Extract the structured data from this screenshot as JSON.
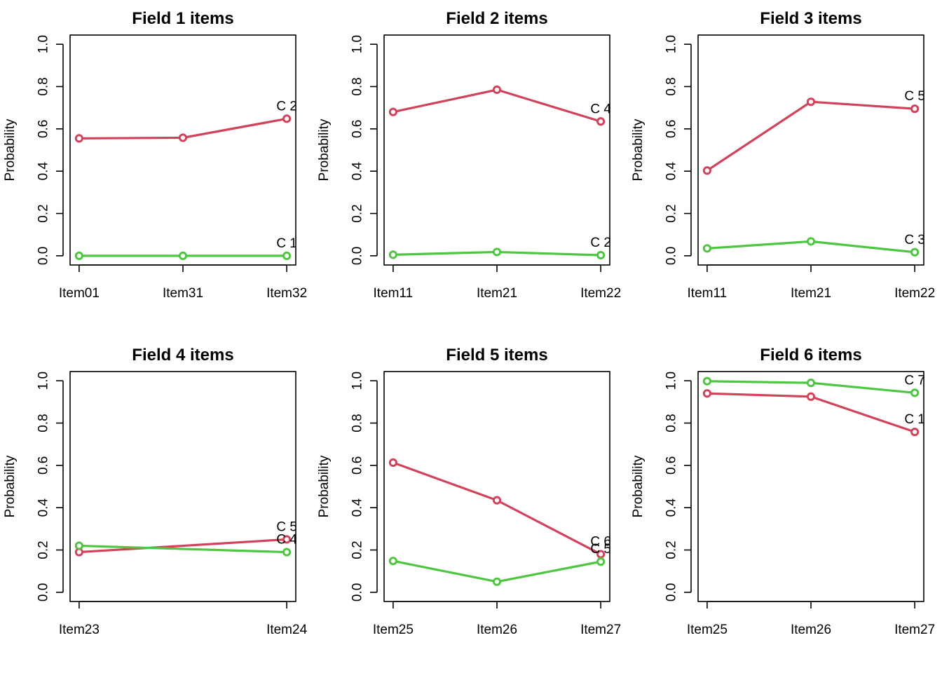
{
  "colors": {
    "series_red": "#d1435b",
    "series_green": "#4ec641"
  },
  "chart_data": [
    {
      "type": "line",
      "title": "Field 1 items",
      "ylabel": "Probability",
      "ylim": [
        0,
        1
      ],
      "yticks": [
        "0.0",
        "0.2",
        "0.4",
        "0.6",
        "0.8",
        "1.0"
      ],
      "categories": [
        "Item01",
        "Item31",
        "Item32"
      ],
      "series": [
        {
          "color": "red",
          "values": [
            0.555,
            0.558,
            0.648
          ],
          "end_label": "C 2"
        },
        {
          "color": "green",
          "values": [
            0.0,
            0.0,
            0.0
          ],
          "end_label": "C 1"
        }
      ]
    },
    {
      "type": "line",
      "title": "Field 2 items",
      "ylabel": "Probability",
      "ylim": [
        0,
        1
      ],
      "yticks": [
        "0.0",
        "0.2",
        "0.4",
        "0.6",
        "0.8",
        "1.0"
      ],
      "categories": [
        "Item11",
        "Item21",
        "Item22"
      ],
      "series": [
        {
          "color": "red",
          "values": [
            0.68,
            0.785,
            0.635
          ],
          "end_label": "C 4"
        },
        {
          "color": "green",
          "values": [
            0.005,
            0.018,
            0.003
          ],
          "end_label": "C 2"
        }
      ]
    },
    {
      "type": "line",
      "title": "Field 3 items",
      "ylabel": "Probability",
      "ylim": [
        0,
        1
      ],
      "yticks": [
        "0.0",
        "0.2",
        "0.4",
        "0.6",
        "0.8",
        "1.0"
      ],
      "categories": [
        "Item11",
        "Item21",
        "Item22"
      ],
      "series": [
        {
          "color": "red",
          "values": [
            0.403,
            0.728,
            0.695
          ],
          "end_label": "C 5"
        },
        {
          "color": "green",
          "values": [
            0.035,
            0.068,
            0.017
          ],
          "end_label": "C 3"
        }
      ]
    },
    {
      "type": "line",
      "title": "Field 4 items",
      "ylabel": "Probability",
      "ylim": [
        0,
        1
      ],
      "yticks": [
        "0.0",
        "0.2",
        "0.4",
        "0.6",
        "0.8",
        "1.0"
      ],
      "categories": [
        "Item23",
        "Item24"
      ],
      "series": [
        {
          "color": "red",
          "values": [
            0.19,
            0.25
          ],
          "end_label": "C 5"
        },
        {
          "color": "green",
          "values": [
            0.22,
            0.19
          ],
          "end_label": "C 4"
        }
      ]
    },
    {
      "type": "line",
      "title": "Field 5 items",
      "ylabel": "Probability",
      "ylim": [
        0,
        1
      ],
      "yticks": [
        "0.0",
        "0.2",
        "0.4",
        "0.6",
        "0.8",
        "1.0"
      ],
      "categories": [
        "Item25",
        "Item26",
        "Item27"
      ],
      "series": [
        {
          "color": "red",
          "values": [
            0.613,
            0.435,
            0.18
          ],
          "end_label": "C 6"
        },
        {
          "color": "green",
          "values": [
            0.148,
            0.05,
            0.145
          ],
          "end_label": "C 5"
        }
      ]
    },
    {
      "type": "line",
      "title": "Field 6 items",
      "ylabel": "Probability",
      "ylim": [
        0,
        1
      ],
      "yticks": [
        "0.0",
        "0.2",
        "0.4",
        "0.6",
        "0.8",
        "1.0"
      ],
      "categories": [
        "Item25",
        "Item26",
        "Item27"
      ],
      "series": [
        {
          "color": "red",
          "values": [
            0.94,
            0.925,
            0.758
          ],
          "end_label": "C 1"
        },
        {
          "color": "green",
          "values": [
            0.998,
            0.99,
            0.943
          ],
          "end_label": "C 7"
        }
      ]
    }
  ]
}
